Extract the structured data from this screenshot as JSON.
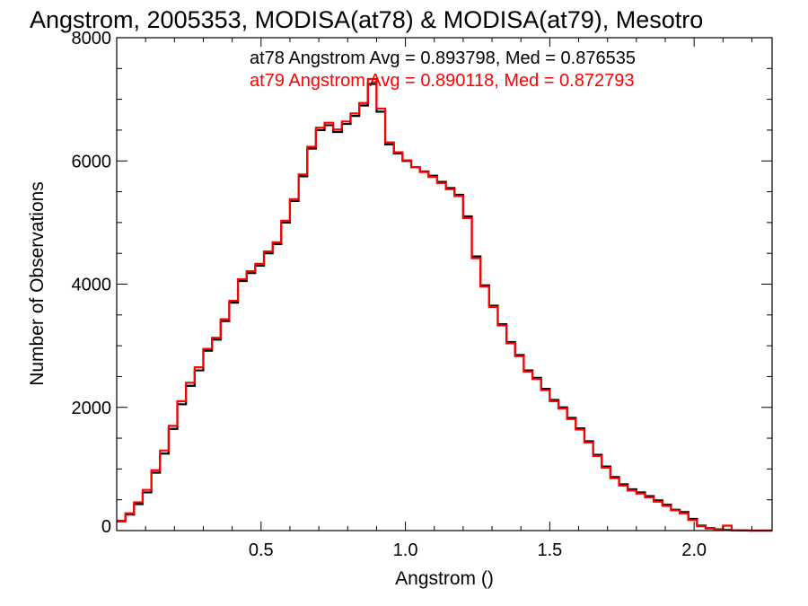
{
  "chart_data": {
    "type": "line",
    "step": true,
    "title": "Angstrom, 2005353, MODISA(at78) & MODISA(at79), Mesotro",
    "xlabel": "Angstrom ()",
    "ylabel": "Number of Observations",
    "xlim": [
      0.0,
      2.27
    ],
    "ylim": [
      0,
      8000
    ],
    "xticks": [
      0.5,
      1.0,
      1.5,
      2.0
    ],
    "xtick_labels": [
      "0.5",
      "1.0",
      "1.5",
      "2.0"
    ],
    "yticks": [
      0,
      2000,
      4000,
      6000,
      8000
    ],
    "ytick_labels": [
      "0",
      "2000",
      "4000",
      "6000",
      "8000"
    ],
    "grid": false,
    "annotations": [
      {
        "text": "at78 Angstrom Avg = 0.893798, Med = 0.876535",
        "color": "#000000"
      },
      {
        "text": "at79 Angstrom Avg = 0.890118, Med = 0.872793",
        "color": "#ff0000"
      }
    ],
    "series": [
      {
        "color": "#000000",
        "x": [
          0.0,
          0.03,
          0.06,
          0.09,
          0.12,
          0.15,
          0.18,
          0.21,
          0.24,
          0.27,
          0.3,
          0.33,
          0.36,
          0.39,
          0.42,
          0.45,
          0.48,
          0.51,
          0.54,
          0.57,
          0.6,
          0.63,
          0.66,
          0.69,
          0.72,
          0.75,
          0.78,
          0.81,
          0.84,
          0.87,
          0.9,
          0.93,
          0.96,
          0.99,
          1.02,
          1.05,
          1.08,
          1.11,
          1.14,
          1.17,
          1.2,
          1.23,
          1.26,
          1.29,
          1.32,
          1.35,
          1.38,
          1.41,
          1.44,
          1.47,
          1.5,
          1.53,
          1.56,
          1.59,
          1.62,
          1.65,
          1.68,
          1.71,
          1.74,
          1.77,
          1.8,
          1.83,
          1.86,
          1.89,
          1.92,
          1.95,
          1.98,
          2.01,
          2.04,
          2.07,
          2.1,
          2.13,
          2.16,
          2.19,
          2.22,
          2.25
        ],
        "values": [
          150,
          260,
          430,
          620,
          940,
          1250,
          1650,
          2050,
          2350,
          2600,
          2920,
          3100,
          3400,
          3700,
          4050,
          4180,
          4300,
          4500,
          4650,
          5000,
          5350,
          5750,
          6200,
          6500,
          6580,
          6470,
          6600,
          6730,
          6900,
          7250,
          6800,
          6270,
          6120,
          6000,
          5900,
          5830,
          5760,
          5660,
          5560,
          5450,
          5100,
          4450,
          3980,
          3650,
          3350,
          3060,
          2850,
          2600,
          2480,
          2300,
          2120,
          2000,
          1830,
          1660,
          1450,
          1230,
          1040,
          870,
          750,
          670,
          620,
          560,
          490,
          420,
          340,
          300,
          190,
          80,
          40,
          20,
          10,
          5,
          3,
          0,
          0,
          0
        ]
      },
      {
        "color": "#ff0000",
        "x": [
          0.0,
          0.03,
          0.06,
          0.09,
          0.12,
          0.15,
          0.18,
          0.21,
          0.24,
          0.27,
          0.3,
          0.33,
          0.36,
          0.39,
          0.42,
          0.45,
          0.48,
          0.51,
          0.54,
          0.57,
          0.6,
          0.63,
          0.66,
          0.69,
          0.72,
          0.75,
          0.78,
          0.81,
          0.84,
          0.87,
          0.9,
          0.93,
          0.96,
          0.99,
          1.02,
          1.05,
          1.08,
          1.11,
          1.14,
          1.17,
          1.2,
          1.23,
          1.26,
          1.29,
          1.32,
          1.35,
          1.38,
          1.41,
          1.44,
          1.47,
          1.5,
          1.53,
          1.56,
          1.59,
          1.62,
          1.65,
          1.68,
          1.71,
          1.74,
          1.77,
          1.8,
          1.83,
          1.86,
          1.89,
          1.92,
          1.95,
          1.98,
          2.01,
          2.04,
          2.07,
          2.1,
          2.13,
          2.16,
          2.19,
          2.22,
          2.25
        ],
        "values": [
          160,
          280,
          460,
          660,
          980,
          1300,
          1700,
          2100,
          2400,
          2650,
          2950,
          3130,
          3430,
          3730,
          4080,
          4210,
          4330,
          4530,
          4680,
          5030,
          5380,
          5780,
          6230,
          6540,
          6620,
          6510,
          6640,
          6770,
          6940,
          7330,
          6850,
          6300,
          6140,
          6010,
          5900,
          5820,
          5740,
          5640,
          5540,
          5430,
          5070,
          4420,
          3960,
          3630,
          3330,
          3040,
          2830,
          2580,
          2460,
          2280,
          2100,
          1980,
          1810,
          1640,
          1430,
          1210,
          1020,
          850,
          730,
          650,
          600,
          540,
          470,
          400,
          330,
          280,
          170,
          70,
          35,
          15,
          80,
          5,
          2,
          0,
          0,
          0
        ]
      }
    ]
  }
}
